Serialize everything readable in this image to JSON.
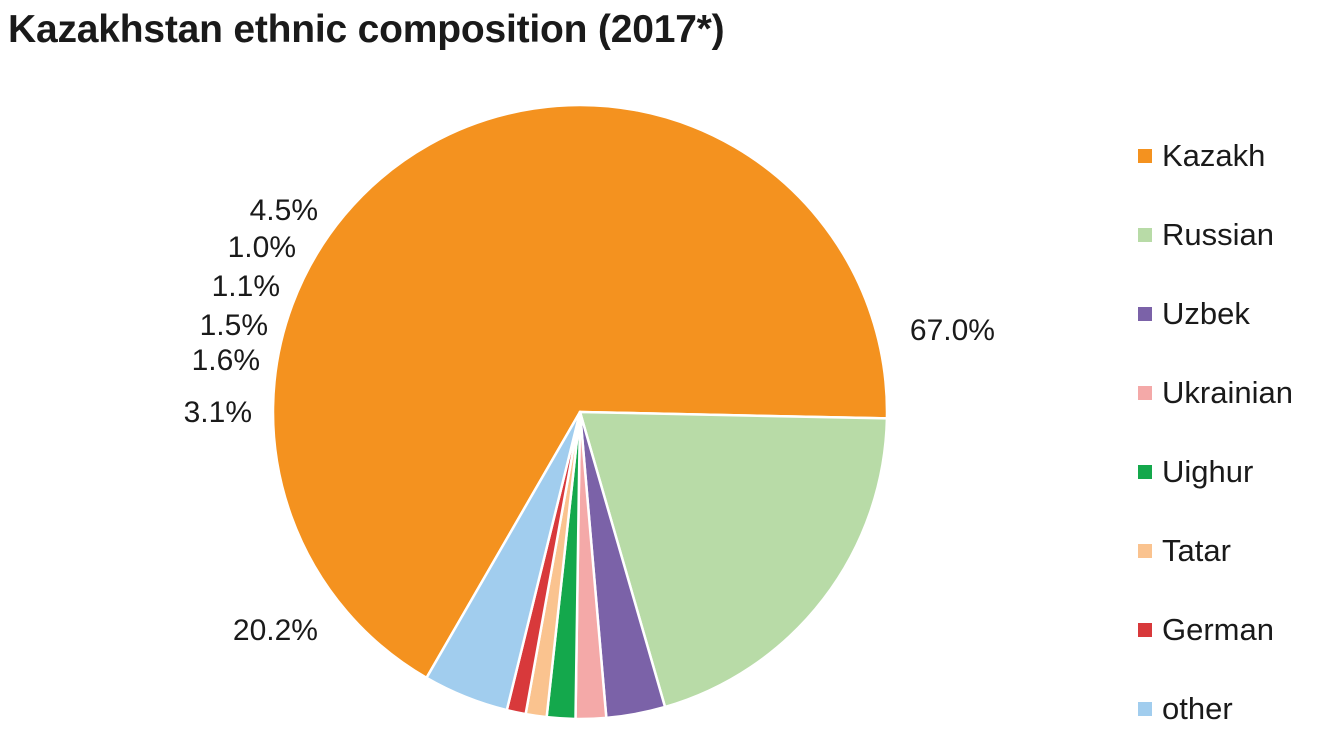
{
  "chart_data": {
    "type": "pie",
    "title": "Kazakhstan ethnic composition (2017*)",
    "legend_position": "right",
    "slices": [
      {
        "label": "Kazakh",
        "value": 67.0,
        "value_label": "67.0%",
        "color": "#F4921F"
      },
      {
        "label": "Russian",
        "value": 20.2,
        "value_label": "20.2%",
        "color": "#B8DBA7"
      },
      {
        "label": "Uzbek",
        "value": 3.1,
        "value_label": "3.1%",
        "color": "#7B62A8"
      },
      {
        "label": "Ukrainian",
        "value": 1.6,
        "value_label": "1.6%",
        "color": "#F4A9A8"
      },
      {
        "label": "Uighur",
        "value": 1.5,
        "value_label": "1.5%",
        "color": "#14A84C"
      },
      {
        "label": "Tatar",
        "value": 1.1,
        "value_label": "1.1%",
        "color": "#FAC38F"
      },
      {
        "label": "German",
        "value": 1.0,
        "value_label": "1.0%",
        "color": "#D8393B"
      },
      {
        "label": "other",
        "value": 4.5,
        "value_label": "4.5%",
        "color": "#A1CDEE"
      }
    ]
  }
}
